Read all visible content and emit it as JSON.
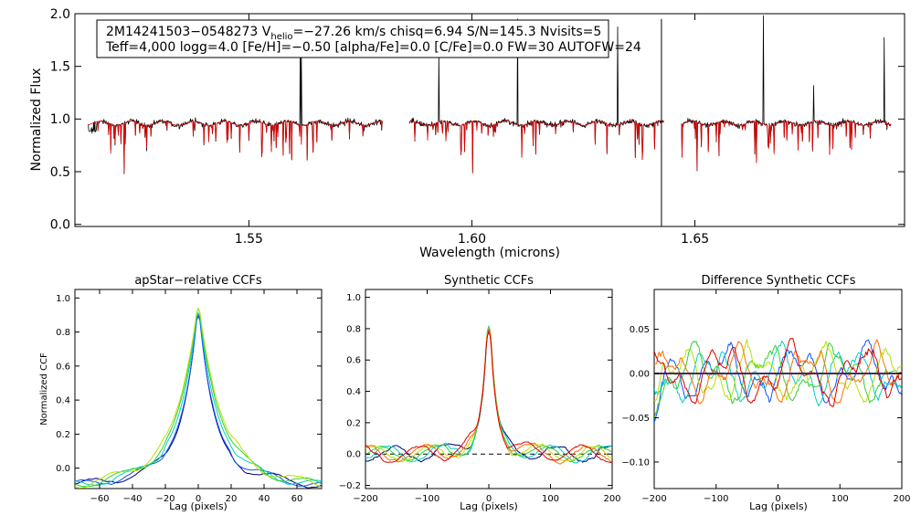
{
  "chart_data": [
    {
      "id": "spectrum",
      "type": "line",
      "title": "",
      "xlabel": "Wavelength (microns)",
      "ylabel": "Normalized Flux",
      "xlim": [
        1.511,
        1.697
      ],
      "ylim": [
        -0.02,
        2.0
      ],
      "xticks": [
        1.55,
        1.6,
        1.65
      ],
      "xtick_labels": [
        "1.55",
        "1.60",
        "1.65"
      ],
      "yticks": [
        0.0,
        0.5,
        1.0,
        1.5,
        2.0
      ],
      "ytick_labels": [
        "0.0",
        "0.5",
        "1.0",
        "1.5",
        "2.0"
      ],
      "annotation": {
        "line1_prefix": "2M14241503−0548273  V",
        "line1_sub": "helio",
        "line1_suffix": "=−27.26 km/s  chisq=6.94  S/N=145.3  Nvisits=5",
        "line2": "Teff=4,000 logg=4.0 [Fe/H]=−0.50 [alpha/Fe]=0.0 [C/Fe]=0.0 FW=30 AUTOFW=24"
      },
      "chips": [
        [
          1.514,
          1.58
        ],
        [
          1.586,
          1.643
        ],
        [
          1.647,
          1.694
        ]
      ],
      "series": [
        {
          "name": "observed",
          "color": "#000000"
        },
        {
          "name": "model",
          "color": "#dd0000"
        }
      ]
    },
    {
      "id": "apstar_ccf",
      "type": "line",
      "title": "apStar−relative CCFs",
      "xlabel": "Lag (pixels)",
      "ylabel": "Normalized CCF",
      "xlim": [
        -75,
        75
      ],
      "ylim": [
        -0.12,
        1.05
      ],
      "xticks": [
        -60,
        -40,
        -20,
        0,
        20,
        40,
        60
      ],
      "xtick_labels": [
        "−60",
        "−40",
        "−20",
        "0",
        "20",
        "40",
        "60"
      ],
      "yticks": [
        0.0,
        0.2,
        0.4,
        0.6,
        0.8,
        1.0
      ],
      "ytick_labels": [
        "0.0",
        "0.2",
        "0.4",
        "0.6",
        "0.8",
        "1.0"
      ],
      "series": [
        {
          "name": "visit-1",
          "color": "#00007a"
        },
        {
          "name": "visit-2",
          "color": "#1050ff"
        },
        {
          "name": "visit-3",
          "color": "#00d0c0"
        },
        {
          "name": "visit-4",
          "color": "#30d030"
        },
        {
          "name": "visit-5",
          "color": "#b8e000"
        }
      ]
    },
    {
      "id": "synthetic_ccf",
      "type": "line",
      "title": "Synthetic CCFs",
      "xlabel": "Lag (pixels)",
      "ylabel": "",
      "xlim": [
        -200,
        200
      ],
      "ylim": [
        -0.22,
        1.05
      ],
      "xticks": [
        -200,
        -100,
        0,
        100,
        200
      ],
      "xtick_labels": [
        "−200",
        "−100",
        "0",
        "100",
        "200"
      ],
      "yticks": [
        -0.2,
        0.0,
        0.2,
        0.4,
        0.6,
        0.8,
        1.0
      ],
      "ytick_labels": [
        "−0.2",
        "0.0",
        "0.2",
        "0.4",
        "0.6",
        "0.8",
        "1.0"
      ],
      "reference_line": 0.0,
      "series": [
        {
          "name": "visit-1",
          "color": "#00007a"
        },
        {
          "name": "visit-2",
          "color": "#00d0c0"
        },
        {
          "name": "visit-3",
          "color": "#30d030"
        },
        {
          "name": "visit-4",
          "color": "#b8e000"
        },
        {
          "name": "visit-5",
          "color": "#ff7000"
        },
        {
          "name": "visit-6",
          "color": "#dd0000"
        }
      ]
    },
    {
      "id": "difference_ccf",
      "type": "line",
      "title": "Difference Synthetic CCFs",
      "xlabel": "Lag (pixels)",
      "ylabel": "",
      "xlim": [
        -200,
        200
      ],
      "ylim": [
        -0.13,
        0.095
      ],
      "xticks": [
        -200,
        -100,
        0,
        100,
        200
      ],
      "xtick_labels": [
        "−200",
        "−100",
        "0",
        "100",
        "200"
      ],
      "yticks": [
        -0.1,
        -0.05,
        0.0,
        0.05
      ],
      "ytick_labels": [
        "−0.10",
        "−0.05",
        "0.00",
        "0.05"
      ],
      "reference_line": 0.0,
      "series": [
        {
          "name": "visit-1",
          "color": "#1050ff"
        },
        {
          "name": "visit-2",
          "color": "#00d0c0"
        },
        {
          "name": "visit-3",
          "color": "#30d030"
        },
        {
          "name": "visit-4",
          "color": "#b8e000"
        },
        {
          "name": "visit-5",
          "color": "#ff7000"
        },
        {
          "name": "visit-6",
          "color": "#dd0000"
        }
      ]
    }
  ]
}
